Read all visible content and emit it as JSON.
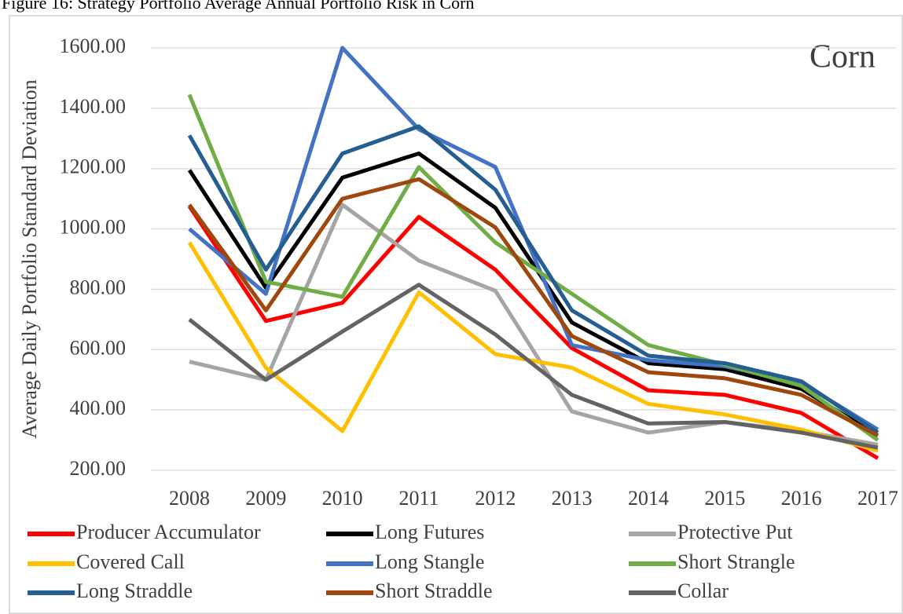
{
  "chart_data": {
    "type": "line",
    "title": "Figure 16: Strategy Portfolio Average Annual Portfolio Risk in Corn",
    "annotations": [
      "Corn"
    ],
    "y_label": "Average Daily Portfolio Standard Deviation",
    "categories": [
      "2008",
      "2009",
      "2010",
      "2011",
      "2012",
      "2013",
      "2014",
      "2015",
      "2016",
      "2017"
    ],
    "series": [
      {
        "name": "Producer Accumulator",
        "color": "#ff0000",
        "values": [
          1075,
          695,
          755,
          1040,
          865,
          605,
          465,
          450,
          390,
          240
        ]
      },
      {
        "name": "Long Futures",
        "color": "#000000",
        "values": [
          1195,
          805,
          1170,
          1250,
          1070,
          690,
          555,
          535,
          470,
          315
        ]
      },
      {
        "name": "Protective Put",
        "color": "#a5a5a5",
        "values": [
          560,
          500,
          1080,
          895,
          795,
          395,
          325,
          360,
          330,
          285
        ]
      },
      {
        "name": "Covered Call",
        "color": "#ffc000",
        "values": [
          955,
          540,
          330,
          790,
          585,
          540,
          420,
          385,
          335,
          265
        ]
      },
      {
        "name": "Long Stangle",
        "color": "#4472c4",
        "values": [
          1000,
          785,
          1600,
          1330,
          1205,
          615,
          565,
          545,
          490,
          335
        ]
      },
      {
        "name": "Short Strangle",
        "color": "#70ad47",
        "values": [
          1445,
          825,
          775,
          1205,
          955,
          785,
          615,
          550,
          480,
          300
        ]
      },
      {
        "name": "Long Straddle",
        "color": "#255e91",
        "values": [
          1310,
          865,
          1250,
          1340,
          1130,
          730,
          580,
          555,
          495,
          325
        ]
      },
      {
        "name": "Short Straddle",
        "color": "#9e480e",
        "values": [
          1080,
          730,
          1100,
          1165,
          1005,
          645,
          525,
          505,
          450,
          315
        ]
      },
      {
        "name": "Collar",
        "color": "#636363",
        "values": [
          700,
          500,
          660,
          815,
          650,
          450,
          355,
          360,
          325,
          275
        ]
      }
    ],
    "ylim": [
      200,
      1600
    ],
    "yticks": [
      {
        "value": 200,
        "label": "200.00"
      },
      {
        "value": 400,
        "label": "400.00"
      },
      {
        "value": 600,
        "label": "600.00"
      },
      {
        "value": 800,
        "label": "800.00"
      },
      {
        "value": 1000,
        "label": "1000.00"
      },
      {
        "value": 1200,
        "label": "1200.00"
      },
      {
        "value": 1400,
        "label": "1400.00"
      },
      {
        "value": 1600,
        "label": "1600.00"
      }
    ],
    "grid": true
  }
}
